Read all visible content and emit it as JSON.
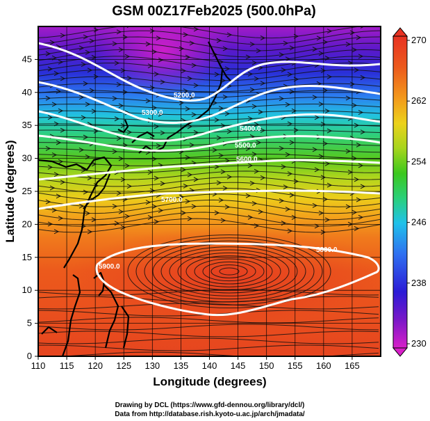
{
  "title": "GSM 00Z17Feb2025 (500.0hPa)",
  "xlabel": "Longitude (degrees)",
  "ylabel": "Latitude  (degrees)",
  "x_ticks": [
    "110",
    "115",
    "120",
    "125",
    "130",
    "135",
    "140",
    "145",
    "150",
    "155",
    "160",
    "165"
  ],
  "y_ticks": [
    "0",
    "5",
    "10",
    "15",
    "20",
    "25",
    "30",
    "35",
    "40",
    "45"
  ],
  "colorbar": {
    "ticks": [
      "270",
      "262",
      "254",
      "246",
      "238",
      "230"
    ],
    "stops": [
      "#d81fc9",
      "#7a17c8",
      "#2b1bd6",
      "#2f6ff0",
      "#1fc1ea",
      "#2ad07a",
      "#3cc81e",
      "#a6d51d",
      "#ecd21b",
      "#f39a1b",
      "#ec5a1c",
      "#e83222"
    ]
  },
  "contour_labels": [
    "5200.0",
    "5300.0",
    "5400.0",
    "5500.0",
    "5600.0",
    "5700.0",
    "5800.0",
    "5900.0"
  ],
  "credits": {
    "line1": "Drawing by DCL (https://www.gfd-dennou.org/library/dcl/)",
    "line2": "Data from http://database.rish.kyoto-u.ac.jp/arch/jmadata/"
  },
  "chart_data": {
    "type": "heatmap",
    "title": "GSM 00Z17Feb2025 (500.0hPa)",
    "xlabel": "Longitude (degrees)",
    "ylabel": "Latitude  (degrees)",
    "xlim": [
      110,
      170
    ],
    "ylim": [
      0,
      50
    ],
    "color_range": [
      230,
      270
    ],
    "contour_levels": [
      5200,
      5300,
      5400,
      5500,
      5600,
      5700,
      5800,
      5900
    ]
  }
}
